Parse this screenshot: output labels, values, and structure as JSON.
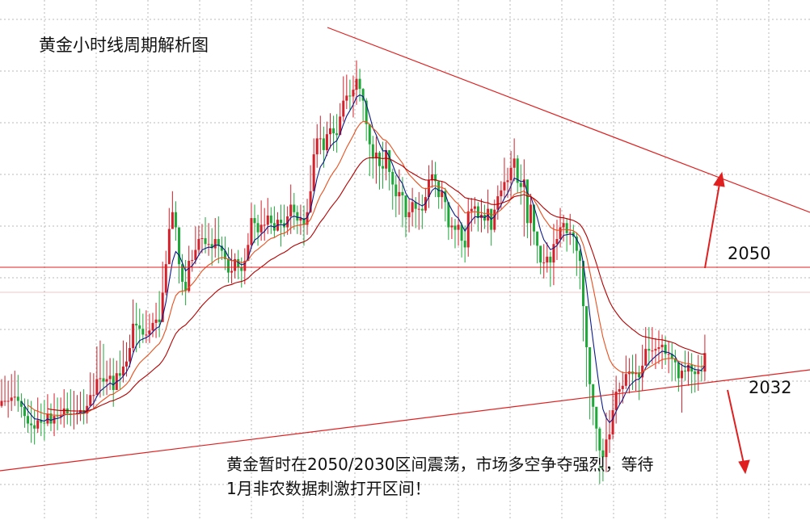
{
  "title": "黄金小时线周期解析图",
  "levels": [
    {
      "label": "2050",
      "value": 2050
    },
    {
      "label": "2032",
      "value": 2032
    }
  ],
  "note": {
    "line1": "黄金暂时在2050/2030区间震荡，市场多空争夺强烈，等待",
    "line2": "1月非农数据刺激打开区间！"
  },
  "colors": {
    "up_candle": "#d3202a",
    "down_candle": "#1fa83a",
    "ma_fast": "#0b1a8a",
    "ma_mid": "#e8501e",
    "ma_slow": "#b30000",
    "trendline": "#e02020",
    "grid": "#b8b8b8"
  },
  "chart_data": {
    "type": "candlestick",
    "ylim": [
      2026,
      2088
    ],
    "closes": [
      2040.2,
      2040.2,
      2040.2,
      2040.6,
      2040.7,
      2040.2,
      2039.5,
      2038.4,
      2037.5,
      2037.3,
      2036.9,
      2037.9,
      2037.6,
      2037.5,
      2038.7,
      2037.5,
      2038.4,
      2038.3,
      2038.5,
      2039.3,
      2038.7,
      2038.6,
      2038.7,
      2038.8,
      2039.1,
      2038.7,
      2039.6,
      2040.9,
      2040.9,
      2042.8,
      2042.9,
      2042.5,
      2042.8,
      2043.2,
      2041.5,
      2043.5,
      2043.2,
      2044.3,
      2044.9,
      2046.5,
      2049.4,
      2049.2,
      2048.8,
      2048.1,
      2048.1,
      2048.6,
      2049.5,
      2049.9,
      2049.6,
      2053.1,
      2056.5,
      2060.7,
      2062.7,
      2060.9,
      2056.5,
      2054.4,
      2053.3,
      2056.9,
      2057.0,
      2058.2,
      2059.5,
      2059.6,
      2058.9,
      2058.9,
      2058.4,
      2059.5,
      2058.7,
      2058.1,
      2057.1,
      2055.5,
      2055.7,
      2057.1,
      2056.1,
      2055.7,
      2056.9,
      2058.8,
      2062.0,
      2061.4,
      2060.3,
      2061.2,
      2061.2,
      2062.3,
      2061.4,
      2060.5,
      2061.8,
      2061.4,
      2060.9,
      2062.2,
      2063.6,
      2062.7,
      2061.7,
      2062.0,
      2061.2,
      2062.7,
      2065.2,
      2069.6,
      2071.5,
      2071.5,
      2070.1,
      2072.0,
      2072.7,
      2072.1,
      2071.9,
      2074.1,
      2076.0,
      2076.6,
      2076.5,
      2077.3,
      2078.6,
      2077.4,
      2076.0,
      2073.2,
      2070.8,
      2069.1,
      2069.8,
      2068.2,
      2067.9,
      2070.1,
      2067.5,
      2066.0,
      2064.6,
      2065.1,
      2064.7,
      2062.1,
      2062.7,
      2063.9,
      2063.1,
      2063.1,
      2062.9,
      2064.5,
      2066.5,
      2067.2,
      2066.4,
      2064.5,
      2065.2,
      2063.9,
      2060.9,
      2061.1,
      2060.6,
      2061.2,
      2059.3,
      2058.5,
      2062.8,
      2063.1,
      2063.4,
      2062.0,
      2062.4,
      2061.7,
      2063.1,
      2060.6,
      2063.0,
      2064.6,
      2065.3,
      2066.3,
      2066.5,
      2068.0,
      2069.1,
      2066.2,
      2065.7,
      2066.6,
      2061.4,
      2063.6,
      2060.4,
      2058.7,
      2056.7,
      2056.7,
      2057.4,
      2056.7,
      2058.9,
      2059.5,
      2060.9,
      2061.4,
      2060.2,
      2060.3,
      2059.8,
      2058.1,
      2056.9,
      2051.5,
      2046.6,
      2042.2,
      2039.5,
      2036.9,
      2034.3,
      2033.5,
      2035.6,
      2036.2,
      2039.1,
      2041.3,
      2041.6,
      2042.0,
      2043.4,
      2043.7,
      2043.4,
      2043.6,
      2043.0,
      2044.4,
      2046.4,
      2046.2,
      2046.2,
      2046.4,
      2046.6,
      2046.9,
      2045.8,
      2045.8,
      2045.2,
      2044.8,
      2042.9,
      2043.8,
      2043.7,
      2044.5,
      2043.7,
      2043.4,
      2043.8,
      2043.7,
      2045.9
    ],
    "highs": [
      2042.8,
      2043.2,
      2042.6,
      2043.4,
      2043.8,
      2043.3,
      2041.1,
      2040.5,
      2040.4,
      2040.2,
      2039.1,
      2040.6,
      2039.9,
      2040.3,
      2041.0,
      2039.9,
      2041.1,
      2040.6,
      2040.6,
      2041.6,
      2041.2,
      2041.6,
      2041.4,
      2040.9,
      2041.3,
      2041.6,
      2041.0,
      2043.6,
      2043.5,
      2046.7,
      2047.4,
      2047.0,
      2045.0,
      2045.3,
      2045.3,
      2045.0,
      2046.2,
      2047.4,
      2047.2,
      2048.1,
      2052.3,
      2051.9,
      2051.2,
      2050.6,
      2051.0,
      2050.6,
      2050.7,
      2051.9,
      2053.3,
      2056.8,
      2058.1,
      2063.2,
      2065.2,
      2064.0,
      2060.1,
      2057.7,
      2057.0,
      2058.7,
      2058.2,
      2061.0,
      2061.1,
      2061.3,
      2062.1,
      2061.4,
      2060.8,
      2062.0,
      2062.2,
      2059.8,
      2059.8,
      2058.5,
      2058.3,
      2057.8,
      2058.2,
      2057.3,
      2058.4,
      2060.2,
      2063.8,
      2063.6,
      2062.4,
      2064.1,
      2063.2,
      2064.4,
      2063.3,
      2063.4,
      2062.7,
      2063.6,
      2063.6,
      2063.4,
      2066.0,
      2065.0,
      2063.5,
      2063.6,
      2063.5,
      2064.3,
      2068.3,
      2071.5,
      2073.2,
      2074.2,
      2072.9,
      2073.5,
      2074.5,
      2074.2,
      2074.4,
      2075.7,
      2078.9,
      2079.1,
      2078.5,
      2079.0,
      2080.8,
      2079.8,
      2077.5,
      2076.3,
      2072.6,
      2071.8,
      2071.7,
      2070.0,
      2071.1,
      2071.1,
      2069.5,
      2067.9,
      2067.1,
      2067.8,
      2066.9,
      2063.9,
      2064.3,
      2065.6,
      2064.5,
      2065.1,
      2064.8,
      2065.6,
      2068.3,
      2068.9,
      2068.7,
      2066.0,
      2066.4,
      2065.6,
      2063.0,
      2062.1,
      2061.9,
      2063.5,
      2061.5,
      2061.1,
      2064.4,
      2064.4,
      2064.5,
      2063.9,
      2064.3,
      2063.6,
      2065.4,
      2062.0,
      2064.2,
      2065.9,
      2066.4,
      2069.2,
      2068.0,
      2070.0,
      2071.5,
      2069.5,
      2068.4,
      2069.0,
      2063.4,
      2064.9,
      2062.4,
      2059.8,
      2058.3,
      2058.9,
      2059.1,
      2058.0,
      2061.3,
      2061.8,
      2063.2,
      2062.4,
      2062.0,
      2062.5,
      2061.2,
      2060.3,
      2058.3,
      2052.9,
      2049.6,
      2044.3,
      2041.8,
      2038.5,
      2037.1,
      2035.7,
      2038.8,
      2039.1,
      2041.5,
      2043.2,
      2042.4,
      2043.7,
      2045.6,
      2045.3,
      2045.7,
      2045.8,
      2044.4,
      2046.9,
      2049.0,
      2049.0,
      2049.0,
      2047.7,
      2048.6,
      2048.1,
      2047.9,
      2047.3,
      2047.1,
      2046.3,
      2044.0,
      2044.7,
      2046.2,
      2046.1,
      2045.9,
      2044.5,
      2045.7,
      2045.6,
      2048.1
    ],
    "lows": [
      2039.4,
      2039.6,
      2038.2,
      2039.0,
      2039.6,
      2038.9,
      2038.2,
      2037.0,
      2036.4,
      2035.2,
      2035.0,
      2036.4,
      2036.0,
      2035.5,
      2037.2,
      2036.6,
      2036.0,
      2036.7,
      2037.4,
      2037.0,
      2037.4,
      2037.2,
      2036.8,
      2037.4,
      2037.8,
      2037.4,
      2037.5,
      2039.8,
      2039.3,
      2041.0,
      2040.6,
      2040.8,
      2040.9,
      2041.5,
      2039.5,
      2041.7,
      2041.6,
      2042.4,
      2043.1,
      2044.2,
      2046.0,
      2046.0,
      2046.5,
      2047.1,
      2047.1,
      2047.1,
      2047.8,
      2047.7,
      2047.8,
      2050.7,
      2052.8,
      2058.2,
      2060.9,
      2059.3,
      2054.2,
      2052.8,
      2051.6,
      2053.1,
      2055.6,
      2056.5,
      2057.7,
      2057.8,
      2057.8,
      2057.5,
      2056.3,
      2057.3,
      2056.6,
      2057.0,
      2055.8,
      2054.3,
      2054.2,
      2054.8,
      2054.7,
      2053.7,
      2054.1,
      2057.1,
      2058.3,
      2059.0,
      2058.7,
      2059.3,
      2059.3,
      2060.1,
      2060.1,
      2059.7,
      2060.4,
      2058.6,
      2059.8,
      2060.0,
      2060.1,
      2060.6,
      2060.1,
      2060.0,
      2058.7,
      2060.0,
      2062.6,
      2066.5,
      2068.0,
      2069.6,
      2068.0,
      2069.4,
      2070.3,
      2070.0,
      2069.8,
      2073.0,
      2073.5,
      2075.0,
      2074.9,
      2074.0,
      2075.5,
      2075.9,
      2073.6,
      2071.2,
      2067.0,
      2066.7,
      2066.1,
      2065.4,
      2065.5,
      2066.5,
      2065.3,
      2063.0,
      2062.1,
      2062.4,
      2060.9,
      2059.7,
      2060.3,
      2061.0,
      2060.8,
      2060.6,
      2060.7,
      2062.6,
      2063.2,
      2065.6,
      2064.5,
      2063.1,
      2063.1,
      2061.6,
      2059.4,
      2059.5,
      2058.4,
      2058.7,
      2057.3,
      2056.7,
      2057.4,
      2060.4,
      2061.3,
      2060.4,
      2060.3,
      2060.7,
      2060.2,
      2058.7,
      2060.3,
      2061.8,
      2063.1,
      2064.4,
      2064.4,
      2064.3,
      2066.4,
      2065.0,
      2063.6,
      2059.8,
      2059.6,
      2058.7,
      2058.8,
      2056.6,
      2055.3,
      2054.8,
      2055.5,
      2053.8,
      2054.0,
      2057.0,
      2058.5,
      2059.2,
      2058.0,
      2058.8,
      2057.8,
      2055.1,
      2053.5,
      2047.3,
      2041.9,
      2038.0,
      2037.3,
      2034.2,
      2030.3,
      2030.6,
      2031.7,
      2034.0,
      2035.6,
      2037.5,
      2039.8,
      2039.9,
      2041.6,
      2041.1,
      2041.5,
      2041.4,
      2040.3,
      2041.4,
      2044.8,
      2044.4,
      2044.6,
      2044.0,
      2044.6,
      2044.0,
      2044.5,
      2043.5,
      2042.6,
      2042.6,
      2041.3,
      2038.8,
      2042.6,
      2042.0,
      2041.1,
      2041.2,
      2041.4,
      2042.5,
      2042.6
    ],
    "series": [
      {
        "name": "",
        "kind": "moving-average",
        "color": "#0b1a8a"
      },
      {
        "name": "",
        "kind": "moving-average",
        "color": "#e8501e"
      },
      {
        "name": "",
        "kind": "moving-average",
        "color": "#b30000"
      }
    ],
    "grid": true
  }
}
